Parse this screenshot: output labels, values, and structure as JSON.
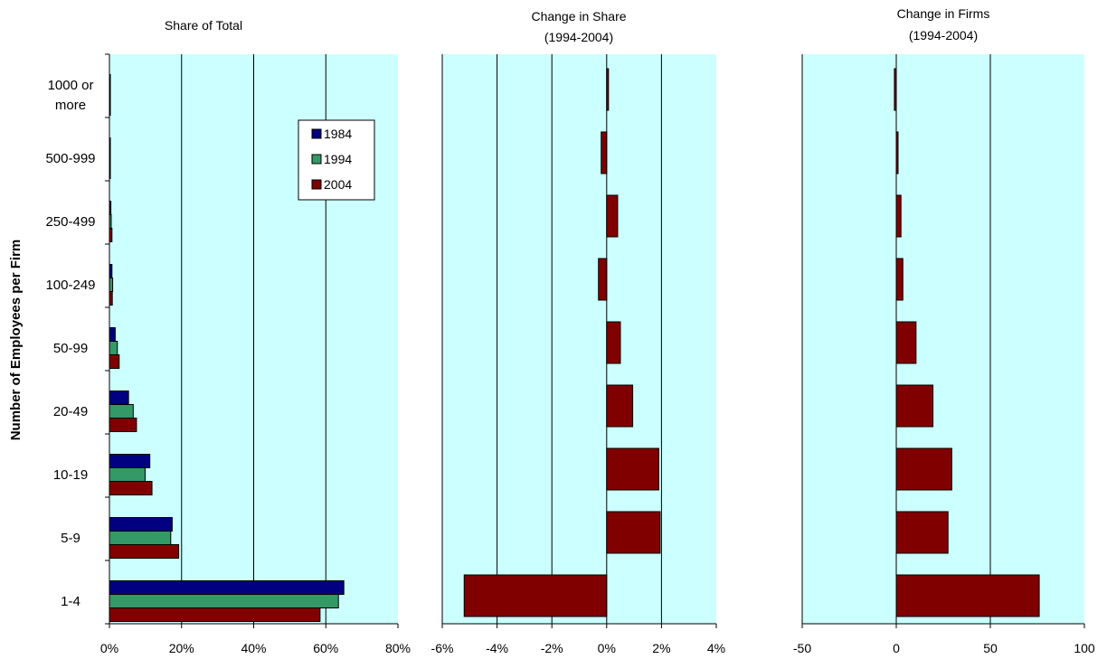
{
  "figure": {
    "ylabel": "Number of Employees per Firm",
    "categories": [
      "1000 or more",
      "500-999",
      "250-499",
      "100-249",
      "50-99",
      "20-49",
      "10-19",
      "5-9",
      "1-4"
    ],
    "category_lines": [
      [
        "1000 or",
        "more"
      ],
      [
        "500-999"
      ],
      [
        "250-499"
      ],
      [
        "100-249"
      ],
      [
        "50-99"
      ],
      [
        "20-49"
      ],
      [
        "10-19"
      ],
      [
        "5-9"
      ],
      [
        "1-4"
      ]
    ],
    "colors": {
      "plot_bg": "#ccffff",
      "c1984": "#000080",
      "c1994": "#339966",
      "c2004": "#800000",
      "border": "#000000"
    }
  },
  "chart_data": [
    {
      "type": "bar",
      "orientation": "horizontal",
      "title": "Share of Total",
      "categories": [
        "1000 or more",
        "500-999",
        "250-499",
        "100-249",
        "50-99",
        "20-49",
        "10-19",
        "5-9",
        "1-4"
      ],
      "series": [
        {
          "name": "1984",
          "values": [
            0.02,
            0.1,
            0.4,
            0.7,
            1.6,
            5.3,
            11.2,
            17.4,
            65.0
          ]
        },
        {
          "name": "1994",
          "values": [
            0.03,
            0.15,
            0.5,
            0.9,
            2.2,
            6.6,
            9.9,
            17.0,
            63.5
          ]
        },
        {
          "name": "2004",
          "values": [
            0.05,
            0.2,
            0.7,
            0.8,
            2.7,
            7.5,
            11.8,
            19.2,
            58.4
          ]
        }
      ],
      "xlim": [
        0,
        80
      ],
      "xticks": [
        "0%",
        "20%",
        "40%",
        "60%",
        "80%"
      ],
      "legend": {
        "position": "top-right",
        "labels": [
          "1984",
          "1994",
          "2004"
        ]
      },
      "grid": true
    },
    {
      "type": "bar",
      "orientation": "horizontal",
      "title": "Change in Share",
      "subtitle": "(1994-2004)",
      "categories": [
        "1000 or more",
        "500-999",
        "250-499",
        "100-249",
        "50-99",
        "20-49",
        "10-19",
        "5-9",
        "1-4"
      ],
      "values": [
        0,
        -0.2,
        0.4,
        -0.3,
        0.5,
        0.95,
        1.9,
        1.95,
        -5.2
      ],
      "xlim": [
        -6,
        4
      ],
      "xticks": [
        "-6%",
        "-4%",
        "-2%",
        "0%",
        "2%",
        "4%"
      ],
      "grid": true
    },
    {
      "type": "bar",
      "orientation": "horizontal",
      "title": "Change in Firms",
      "subtitle": "(1994-2004)",
      "categories": [
        "1000 or more",
        "500-999",
        "250-499",
        "100-249",
        "50-99",
        "20-49",
        "10-19",
        "5-9",
        "1-4"
      ],
      "values": [
        -1,
        0,
        2.5,
        3.5,
        10.5,
        19.5,
        29.5,
        27.5,
        76.0
      ],
      "xlim": [
        -50,
        100
      ],
      "xticks": [
        "-50",
        "0",
        "50",
        "100"
      ],
      "grid": true
    }
  ]
}
